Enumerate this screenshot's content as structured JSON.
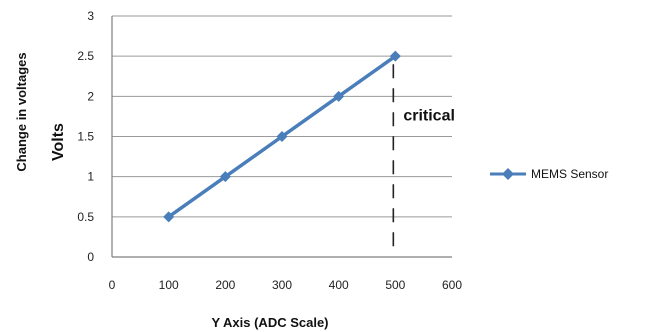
{
  "chart_data": {
    "type": "line",
    "title": "",
    "xlabel": "Y Axis (ADC Scale)",
    "ylabel_outer": "Change in voltages",
    "ylabel_inner": "Volts",
    "xlim": [
      0,
      600
    ],
    "ylim": [
      0,
      3
    ],
    "x_ticks": [
      "0",
      "100",
      "200",
      "300",
      "400",
      "500",
      "600"
    ],
    "y_ticks": [
      "0",
      "0.5",
      "1",
      "1.5",
      "2",
      "2.5",
      "3"
    ],
    "grid": "horizontal",
    "legend_position": "right",
    "series": [
      {
        "name": "MEMS Sensor",
        "color": "#4a7ebb",
        "marker": "diamond",
        "x": [
          100,
          200,
          300,
          400,
          500
        ],
        "y": [
          0.5,
          1,
          1.5,
          2,
          2.5
        ]
      }
    ],
    "annotations": [
      {
        "text": "critical",
        "x": 500,
        "style": "dashed-vertical-line"
      }
    ]
  }
}
